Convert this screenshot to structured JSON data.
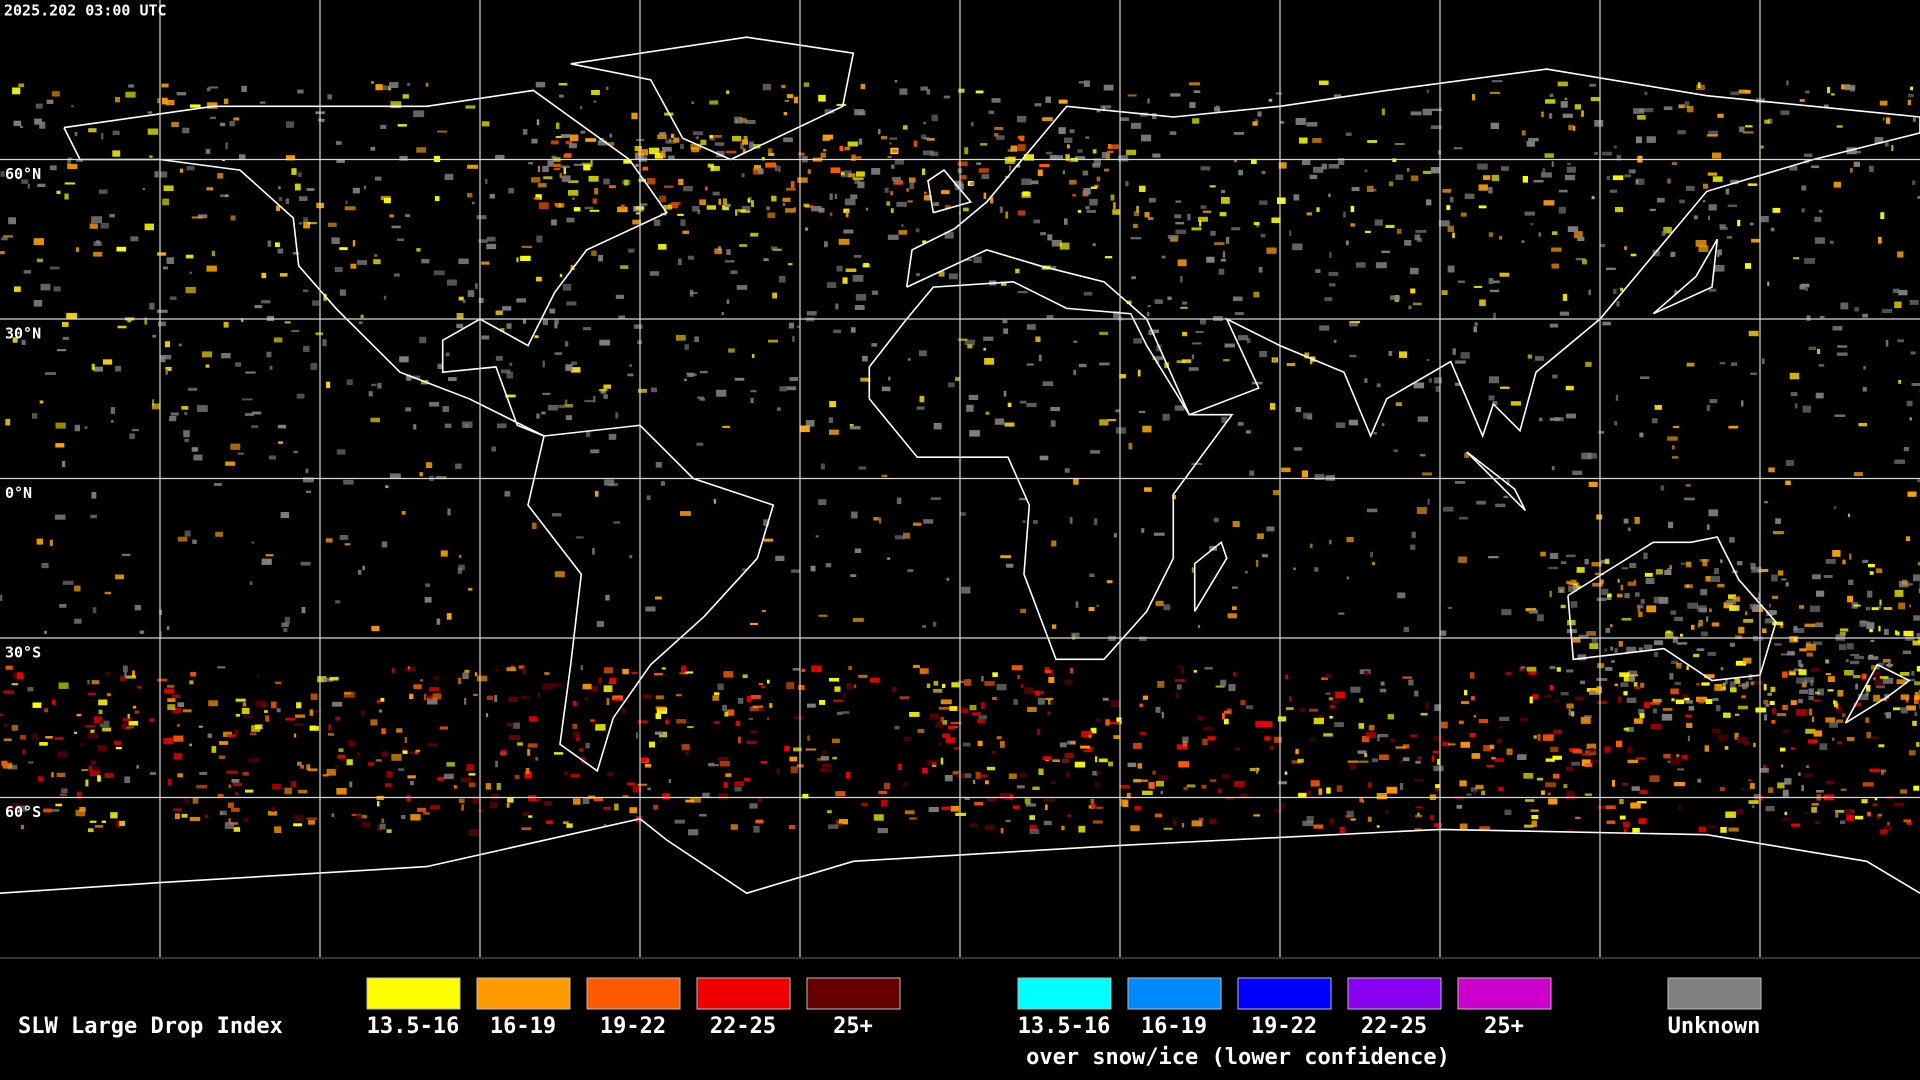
{
  "timestamp": "2025.202 03:00 UTC",
  "latitude_labels": [
    "60°N",
    "30°N",
    "0°N",
    "30°S",
    "60°S"
  ],
  "legend": {
    "title": "SLW Large Drop Index",
    "bins": [
      {
        "label": "13.5-16",
        "color": "#ffff00"
      },
      {
        "label": "16-19",
        "color": "#ff9a00"
      },
      {
        "label": "19-22",
        "color": "#ff5a00"
      },
      {
        "label": "22-25",
        "color": "#ee0000"
      },
      {
        "label": "25+",
        "color": "#660000"
      }
    ],
    "snow_ice_bins": [
      {
        "label": "13.5-16",
        "color": "#00ffff"
      },
      {
        "label": "16-19",
        "color": "#0088ff"
      },
      {
        "label": "19-22",
        "color": "#0000ff"
      },
      {
        "label": "22-25",
        "color": "#8800ee"
      },
      {
        "label": "25+",
        "color": "#cc00cc"
      }
    ],
    "snow_ice_caption": "over snow/ice (lower confidence)",
    "unknown": {
      "label": "Unknown",
      "color": "#808080"
    }
  }
}
